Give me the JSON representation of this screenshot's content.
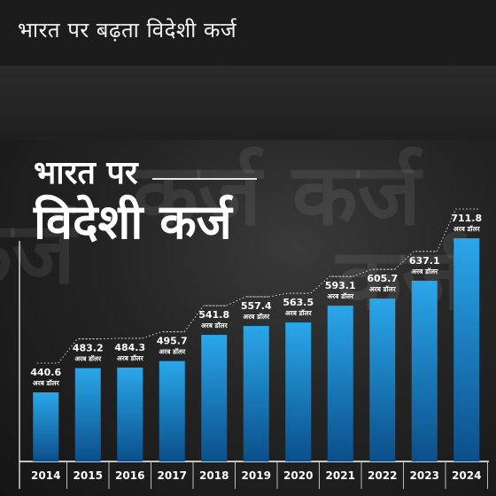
{
  "banner": {
    "title": "भारत पर बढ़ता विदेशी कर्ज"
  },
  "headline": {
    "line1": "भारत पर",
    "line2": "विदेशी कर्ज"
  },
  "background": {
    "word": "कर्ज"
  },
  "colors": {
    "bar_top": "#2aa7ea",
    "bar_bottom": "#0b4f8a",
    "text": "#ffffff",
    "baseline": "#ffffff"
  },
  "chart_data": {
    "type": "bar",
    "categories": [
      "2014",
      "2015",
      "2016",
      "2017",
      "2018",
      "2019",
      "2020",
      "2021",
      "2022",
      "2023",
      "2024"
    ],
    "values": [
      440.6,
      483.2,
      484.3,
      495.7,
      541.8,
      557.4,
      563.5,
      593.1,
      605.7,
      637.1,
      711.8
    ],
    "value_labels": [
      "440.6",
      "483.2",
      "484.3",
      "495.7",
      "541.8",
      "557.4",
      "563.5",
      "593.1",
      "605.7",
      "637.1",
      "711.8"
    ],
    "unit": "अरब डॉलर",
    "title": "भारत पर विदेशी कर्ज",
    "grid": false,
    "legend": "none"
  }
}
